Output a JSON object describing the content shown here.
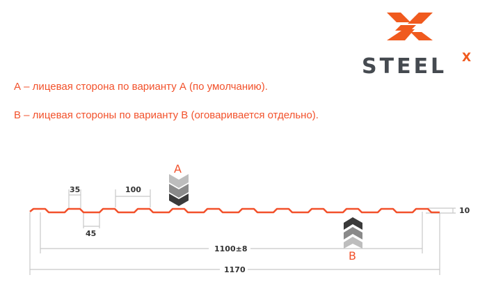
{
  "logo": {
    "text": "STEEL",
    "superscript": "X",
    "brand_color": "#f05a1e",
    "text_color": "#454a50"
  },
  "notes": [
    "А – лицевая сторона по варианту А (по умолчанию).",
    "В – лицевая стороны по варианту В (оговаривается отдельно)."
  ],
  "diagram": {
    "profile_color": "#f2512b",
    "dimension_color": "#c8c8c8",
    "side_a_label": "A",
    "side_b_label": "B",
    "dimensions": {
      "rib_top": "35",
      "rib_pitch": "100",
      "rib_bottom": "45",
      "height": "10",
      "useful_width": "1100±8",
      "total_width": "1170"
    }
  }
}
